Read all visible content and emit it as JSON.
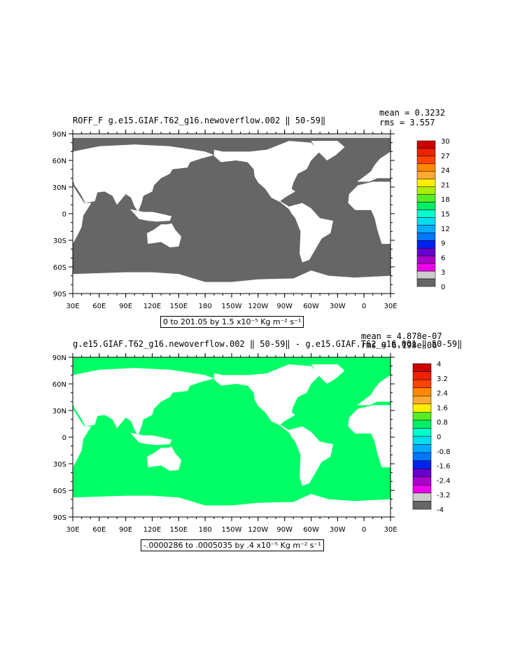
{
  "panels": [
    {
      "title_left": "ROFF_F g.e15.GIAF.T62_g16.newoverflow.002 ‖ 50-59‖",
      "mean_text": "mean = 0.3232",
      "rms_text": "rms = 3.557",
      "contour_info": "0 to 201.05 by 1.5 x10⁻⁵ Kg m⁻² s⁻¹",
      "ocean_color": "#666666",
      "land_color": "#ffffff",
      "colorbar": {
        "labels": [
          "30",
          "27",
          "24",
          "21",
          "18",
          "15",
          "12",
          "9",
          "6",
          "3",
          "0"
        ],
        "colors": [
          "#cc0000",
          "#ee2200",
          "#ff4400",
          "#ff8800",
          "#ffaa33",
          "#ffee00",
          "#aaee00",
          "#55ee22",
          "#00ee66",
          "#00ffcc",
          "#00ddee",
          "#00aaff",
          "#0077ff",
          "#0022ee",
          "#6600cc",
          "#aa00cc",
          "#ee00ee",
          "#cccccc",
          "#666666"
        ]
      }
    },
    {
      "title_left": "g.e15.GIAF.T62_g16.newoverflow.002 ‖ 50-59‖ - g.e15.GIAF.T62_g16.001 ‖ 50-59‖",
      "mean_text": "mean = 4.878e-07",
      "rms_text": "rms = 6.198e-06",
      "contour_info": "-.0000286 to .0005035 by .4 x10⁻⁵ Kg m⁻² s⁻¹",
      "ocean_color": "#00ff66",
      "land_color": "#ffffff",
      "colorbar": {
        "labels": [
          "4",
          "3.2",
          "2.4",
          "1.6",
          "0.8",
          "0",
          "-0.8",
          "-1.6",
          "-2.4",
          "-3.2",
          "-4"
        ],
        "colors": [
          "#cc0000",
          "#ee2200",
          "#ff4400",
          "#ff8800",
          "#ffaa33",
          "#ffee00",
          "#55ee22",
          "#00ee66",
          "#00ffcc",
          "#00ddee",
          "#00aaff",
          "#0077ff",
          "#0022ee",
          "#6600cc",
          "#aa00cc",
          "#ee00ee",
          "#cccccc",
          "#666666"
        ]
      }
    }
  ],
  "chart_data": [
    {
      "type": "heatmap",
      "title": "ROFF_F g.e15.GIAF.T62_g16.newoverflow.002 ‖ 50-59‖",
      "x_ticks": [
        "30E",
        "60E",
        "90E",
        "120E",
        "150E",
        "180",
        "150W",
        "120W",
        "90W",
        "60W",
        "30W",
        "0",
        "30E"
      ],
      "y_ticks": [
        "90N",
        "60N",
        "30N",
        "0",
        "30S",
        "60S",
        "90S"
      ],
      "xlim": [
        30,
        390
      ],
      "ylim": [
        -90,
        90
      ],
      "mean": 0.3232,
      "rms": 3.557,
      "contour_min": 0,
      "contour_max": 201.05,
      "contour_interval": 1.5,
      "units": "x10⁻⁵ Kg m⁻² s⁻¹",
      "colorbar_levels": [
        0,
        3,
        6,
        9,
        12,
        15,
        18,
        21,
        24,
        27,
        30
      ]
    },
    {
      "type": "heatmap",
      "title": "g.e15.GIAF.T62_g16.newoverflow.002 ‖ 50-59‖ - g.e15.GIAF.T62_g16.001 ‖ 50-59‖",
      "x_ticks": [
        "30E",
        "60E",
        "90E",
        "120E",
        "150E",
        "180",
        "150W",
        "120W",
        "90W",
        "60W",
        "30W",
        "0",
        "30E"
      ],
      "y_ticks": [
        "90N",
        "60N",
        "30N",
        "0",
        "30S",
        "60S",
        "90S"
      ],
      "xlim": [
        30,
        390
      ],
      "ylim": [
        -90,
        90
      ],
      "mean": 4.878e-07,
      "rms": 6.198e-06,
      "contour_min": -2.86e-05,
      "contour_max": 0.0005035,
      "contour_interval": 0.4,
      "units": "x10⁻⁵ Kg m⁻² s⁻¹",
      "colorbar_levels": [
        -4,
        -3.2,
        -2.4,
        -1.6,
        -0.8,
        0,
        0.8,
        1.6,
        2.4,
        3.2,
        4
      ]
    }
  ]
}
